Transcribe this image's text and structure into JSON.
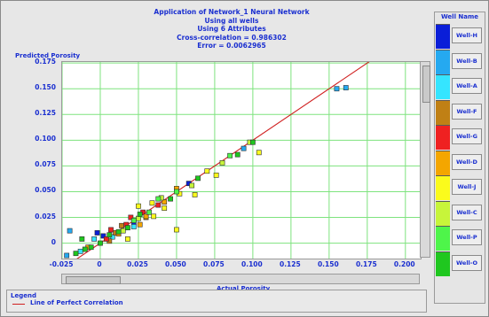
{
  "header": {
    "lines": [
      "Application of Network_1 Neural Network",
      "Using all wells",
      "Using 6 Attributes",
      "Cross-correlation = 0.986302",
      "Error = 0.0062965"
    ]
  },
  "legend_panel": {
    "title": "Well Name",
    "wells": [
      {
        "label": "Well-H",
        "color": "#0a1ed8"
      },
      {
        "label": "Well-B",
        "color": "#25a9f0"
      },
      {
        "label": "Well-A",
        "color": "#35e5ff"
      },
      {
        "label": "Well-F",
        "color": "#c08015"
      },
      {
        "label": "Well-G",
        "color": "#ef2121"
      },
      {
        "label": "Well-D",
        "color": "#f4a600"
      },
      {
        "label": "Well-J",
        "color": "#fbfb1c"
      },
      {
        "label": "Well-C",
        "color": "#c7f53a"
      },
      {
        "label": "Well-P",
        "color": "#4ef54a"
      },
      {
        "label": "Well-O",
        "color": "#1fc71f"
      }
    ]
  },
  "bottom_legend": {
    "title": "Legend",
    "entry": "Line of Perfect Correlation",
    "line_color": "#d02020"
  },
  "chart_data": {
    "type": "scatter",
    "xlabel": "Actual Porosity",
    "ylabel": "Predicted Porosity",
    "xlim": [
      -0.025,
      0.21
    ],
    "ylim": [
      -0.015,
      0.176
    ],
    "x_ticks": [
      "-0.025",
      "0",
      "0.025",
      "0.050",
      "0.075",
      "0.100",
      "0.125",
      "0.150",
      "0.175",
      "0.200"
    ],
    "y_ticks": [
      "0",
      "0.025",
      "0.050",
      "0.075",
      "0.100",
      "0.125",
      "0.150",
      "0.175"
    ],
    "grid": true,
    "grid_color": "#7ee37e",
    "reference_line": {
      "name": "Line of Perfect Correlation",
      "from": [
        -0.02,
        -0.02
      ],
      "to": [
        0.18,
        0.18
      ],
      "color": "#d02020"
    },
    "series": [
      {
        "name": "Well-H",
        "color": "#0a1ed8",
        "points": [
          [
            -0.002,
            0.01
          ],
          [
            0.002,
            0.007
          ],
          [
            0.022,
            0.02
          ],
          [
            0.058,
            0.058
          ]
        ]
      },
      {
        "name": "Well-B",
        "color": "#25a9f0",
        "points": [
          [
            0.155,
            0.15
          ],
          [
            0.161,
            0.151
          ],
          [
            0.094,
            0.092
          ],
          [
            -0.02,
            0.012
          ],
          [
            -0.022,
            -0.012
          ]
        ]
      },
      {
        "name": "Well-A",
        "color": "#35e5ff",
        "points": [
          [
            -0.013,
            -0.008
          ],
          [
            0.008,
            0.006
          ],
          [
            0.022,
            0.016
          ],
          [
            -0.004,
            0.004
          ]
        ]
      },
      {
        "name": "Well-F",
        "color": "#c08015",
        "points": [
          [
            0.01,
            0.01
          ],
          [
            0.03,
            0.025
          ],
          [
            0.014,
            0.017
          ],
          [
            0.006,
            0.002
          ]
        ]
      },
      {
        "name": "Well-G",
        "color": "#ef2121",
        "points": [
          [
            0.004,
            0.004
          ],
          [
            0.017,
            0.018
          ],
          [
            0.028,
            0.03
          ],
          [
            0.038,
            0.037
          ],
          [
            0.007,
            0.013
          ],
          [
            0.02,
            0.025
          ]
        ]
      },
      {
        "name": "Well-D",
        "color": "#f4a600",
        "points": [
          [
            -0.008,
            -0.004
          ],
          [
            0.012,
            0.009
          ],
          [
            0.03,
            0.026
          ],
          [
            0.042,
            0.04
          ],
          [
            0.05,
            0.053
          ],
          [
            0.026,
            0.018
          ]
        ]
      },
      {
        "name": "Well-J",
        "color": "#fbfb1c",
        "points": [
          [
            0.025,
            0.036
          ],
          [
            0.042,
            0.034
          ],
          [
            0.052,
            0.048
          ],
          [
            0.062,
            0.047
          ],
          [
            0.076,
            0.066
          ],
          [
            0.104,
            0.088
          ],
          [
            0.035,
            0.026
          ],
          [
            0.05,
            0.013
          ],
          [
            0.018,
            0.004
          ],
          [
            0.034,
            0.039
          ],
          [
            0.07,
            0.07
          ]
        ]
      },
      {
        "name": "Well-C",
        "color": "#c7f53a",
        "points": [
          [
            0.04,
            0.044
          ],
          [
            0.06,
            0.056
          ],
          [
            0.08,
            0.078
          ],
          [
            0.098,
            0.098
          ],
          [
            0.025,
            0.024
          ],
          [
            0.015,
            0.012
          ]
        ]
      },
      {
        "name": "Well-P",
        "color": "#4ef54a",
        "points": [
          [
            0.085,
            0.085
          ],
          [
            0.05,
            0.05
          ],
          [
            0.038,
            0.043
          ],
          [
            0.022,
            0.022
          ],
          [
            0.032,
            0.03
          ]
        ]
      },
      {
        "name": "Well-O",
        "color": "#1fc71f",
        "points": [
          [
            -0.016,
            -0.01
          ],
          [
            -0.01,
            -0.006
          ],
          [
            0.0,
            0.0
          ],
          [
            0.006,
            0.008
          ],
          [
            0.012,
            0.011
          ],
          [
            0.018,
            0.015
          ],
          [
            0.026,
            0.028
          ],
          [
            0.046,
            0.043
          ],
          [
            0.064,
            0.063
          ],
          [
            0.09,
            0.086
          ],
          [
            0.1,
            0.098
          ],
          [
            -0.012,
            0.004
          ],
          [
            -0.006,
            -0.004
          ]
        ]
      }
    ]
  }
}
